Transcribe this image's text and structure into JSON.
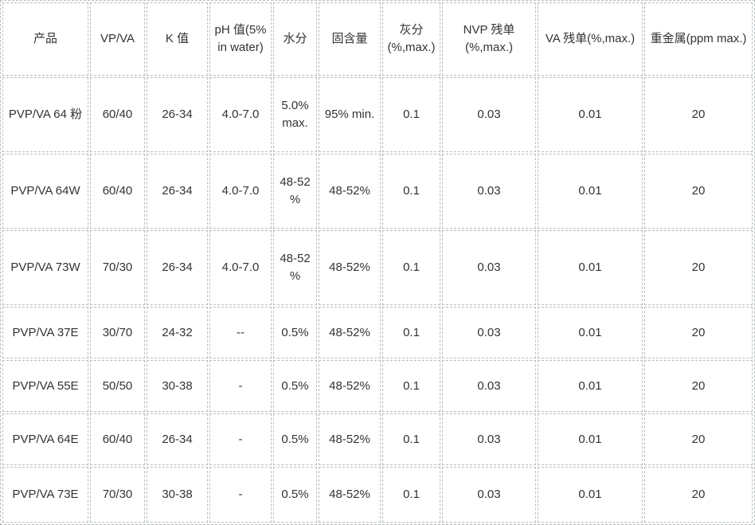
{
  "table": {
    "colors": {
      "border": "#b9bdbf",
      "text": "#333333",
      "background": "#ffffff"
    },
    "columns": [
      {
        "key": "product",
        "label": "产品"
      },
      {
        "key": "vp-va",
        "label": "VP/VA"
      },
      {
        "key": "k-value",
        "label": "K 值"
      },
      {
        "key": "ph-value",
        "label": "pH 值(5% in water)"
      },
      {
        "key": "moisture",
        "label": "水分"
      },
      {
        "key": "solid-content",
        "label": "固含量"
      },
      {
        "key": "ash",
        "label": "灰分 (%,max.)"
      },
      {
        "key": "nvp-residual",
        "label": "NVP 残单 (%,max.)"
      },
      {
        "key": "va-residual",
        "label": "VA 残单(%,max.)"
      },
      {
        "key": "heavy-metals",
        "label": "重金属(ppm max.)"
      }
    ],
    "rows": [
      [
        "PVP/VA 64 粉",
        "60/40",
        "26-34",
        "4.0-7.0",
        "5.0% max.",
        "95% min.",
        "0.1",
        "0.03",
        "0.01",
        "20"
      ],
      [
        "PVP/VA 64W",
        "60/40",
        "26-34",
        "4.0-7.0",
        "48-52 %",
        "48-52%",
        "0.1",
        "0.03",
        "0.01",
        "20"
      ],
      [
        "PVP/VA 73W",
        "70/30",
        "26-34",
        "4.0-7.0",
        "48-52 %",
        "48-52%",
        "0.1",
        "0.03",
        "0.01",
        "20"
      ],
      [
        "PVP/VA 37E",
        "30/70",
        "24-32",
        "--",
        "0.5%",
        "48-52%",
        "0.1",
        "0.03",
        "0.01",
        "20"
      ],
      [
        "PVP/VA 55E",
        "50/50",
        "30-38",
        "-",
        "0.5%",
        "48-52%",
        "0.1",
        "0.03",
        "0.01",
        "20"
      ],
      [
        "PVP/VA 64E",
        "60/40",
        "26-34",
        "-",
        "0.5%",
        "48-52%",
        "0.1",
        "0.03",
        "0.01",
        "20"
      ],
      [
        "PVP/VA 73E",
        "70/30",
        "30-38",
        "-",
        "0.5%",
        "48-52%",
        "0.1",
        "0.03",
        "0.01",
        "20"
      ]
    ]
  }
}
